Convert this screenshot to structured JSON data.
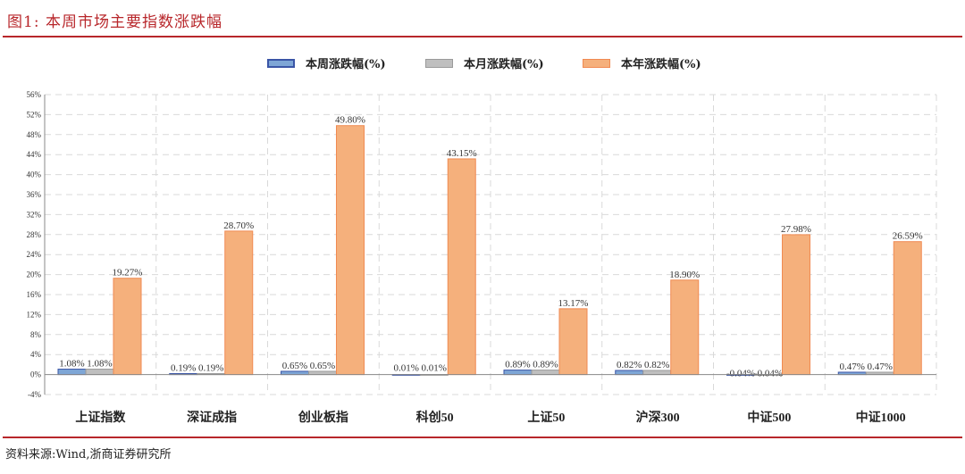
{
  "header": {
    "title": "图1:  本周市场主要指数涨跌幅"
  },
  "legend": [
    {
      "label": "本周涨跌幅(%)",
      "color": "#7ea6d6",
      "border": "#3a55a6"
    },
    {
      "label": "本月涨跌幅(%)",
      "color": "#bfbfbf",
      "border": "#9a9a9a"
    },
    {
      "label": "本年涨跌幅(%)",
      "color": "#f5b07c",
      "border": "#f08a52"
    }
  ],
  "footer": {
    "source": "资料来源:Wind,浙商证券研究所"
  },
  "colors": {
    "accent_red": "#b8272b",
    "grid": "#d9d9d9",
    "axis": "#888888"
  },
  "chart_data": {
    "type": "bar",
    "title": "本周市场主要指数涨跌幅",
    "xlabel": "",
    "ylabel": "",
    "ylim": [
      -4,
      56
    ],
    "yticks": [
      -4,
      0,
      4,
      8,
      12,
      16,
      20,
      24,
      28,
      32,
      36,
      40,
      44,
      48,
      52,
      56
    ],
    "ytick_labels": [
      "-4%",
      "0%",
      "4%",
      "8%",
      "12%",
      "16%",
      "20%",
      "24%",
      "28%",
      "32%",
      "36%",
      "40%",
      "44%",
      "48%",
      "52%",
      "56%"
    ],
    "grid": true,
    "legend_position": "top",
    "categories": [
      "上证指数",
      "深证成指",
      "创业板指",
      "科创50",
      "上证50",
      "沪深300",
      "中证500",
      "中证1000"
    ],
    "series": [
      {
        "name": "本周涨跌幅(%)",
        "values": [
          1.08,
          0.19,
          0.65,
          0.01,
          0.89,
          0.82,
          -0.04,
          0.47
        ],
        "labels": [
          "1.08%",
          "0.19%",
          "0.65%",
          "0.01%",
          "0.89%",
          "0.82%",
          "-0.04%",
          "0.47%"
        ]
      },
      {
        "name": "本月涨跌幅(%)",
        "values": [
          1.08,
          0.19,
          0.65,
          0.01,
          0.89,
          0.82,
          -0.04,
          0.47
        ],
        "labels": [
          "1.08%",
          "0.19%",
          "0.65%",
          "0.01%",
          "0.89%",
          "0.82%",
          "-0.04%",
          "0.47%"
        ]
      },
      {
        "name": "本年涨跌幅(%)",
        "values": [
          19.27,
          28.7,
          49.8,
          43.15,
          13.17,
          18.9,
          27.98,
          26.59
        ],
        "labels": [
          "19.27%",
          "28.70%",
          "49.80%",
          "43.15%",
          "13.17%",
          "18.90%",
          "27.98%",
          "26.59%"
        ]
      }
    ]
  }
}
